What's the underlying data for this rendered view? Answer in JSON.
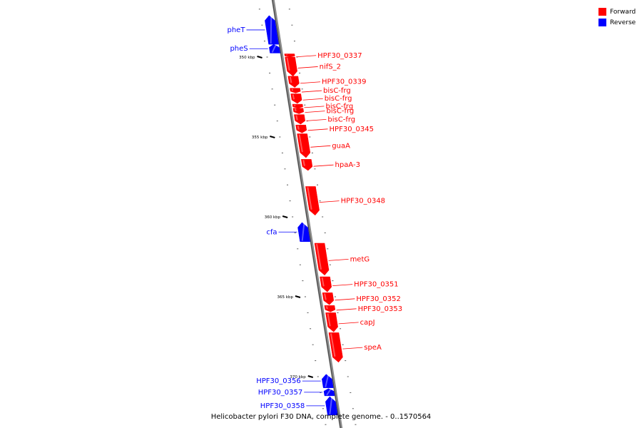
{
  "legend": {
    "forward_label": "Forward",
    "reverse_label": "Reverse",
    "forward_color": "#ff0000",
    "reverse_color": "#0000ff"
  },
  "caption": "Helicobacter pylori F30 DNA, complete genome. - 0..1570564",
  "ruler": {
    "unit": "kbp",
    "start_kbp": 350,
    "step_kbp": 5,
    "end_kbp": 370
  },
  "genes": [
    {
      "name": "pheT",
      "strand": "reverse",
      "start_kbp": 347.4,
      "end_kbp": 349.2
    },
    {
      "name": "pheS",
      "strand": "reverse",
      "start_kbp": 349.2,
      "end_kbp": 349.75
    },
    {
      "name": "HPF30_0337",
      "strand": "forward",
      "start_kbp": 349.8,
      "end_kbp": 350.0
    },
    {
      "name": "nifS_2",
      "strand": "forward",
      "start_kbp": 350.0,
      "end_kbp": 351.2
    },
    {
      "name": "HPF30_0339",
      "strand": "forward",
      "start_kbp": 351.2,
      "end_kbp": 351.9
    },
    {
      "name": "bisC-frg",
      "strand": "forward",
      "start_kbp": 351.95,
      "end_kbp": 352.25
    },
    {
      "name": "bisC-frg",
      "strand": "forward",
      "start_kbp": 352.3,
      "end_kbp": 352.9
    },
    {
      "name": "bisC-frg",
      "strand": "forward",
      "start_kbp": 352.95,
      "end_kbp": 353.2
    },
    {
      "name": "bisC-frg",
      "strand": "forward",
      "start_kbp": 353.2,
      "end_kbp": 353.55
    },
    {
      "name": "bisC-frg",
      "strand": "forward",
      "start_kbp": 353.6,
      "end_kbp": 354.2
    },
    {
      "name": "HPF30_0345",
      "strand": "forward",
      "start_kbp": 354.25,
      "end_kbp": 354.75
    },
    {
      "name": "guaA",
      "strand": "forward",
      "start_kbp": 354.8,
      "end_kbp": 356.3
    },
    {
      "name": "hpaA-3",
      "strand": "forward",
      "start_kbp": 356.4,
      "end_kbp": 357.1
    },
    {
      "name": "HPF30_0348",
      "strand": "forward",
      "start_kbp": 358.1,
      "end_kbp": 359.9
    },
    {
      "name": "cfa",
      "strand": "reverse",
      "start_kbp": 360.35,
      "end_kbp": 361.55
    },
    {
      "name": "metG",
      "strand": "forward",
      "start_kbp": 361.65,
      "end_kbp": 363.65
    },
    {
      "name": "HPF30_0351",
      "strand": "forward",
      "start_kbp": 363.75,
      "end_kbp": 364.7
    },
    {
      "name": "HPF30_0352",
      "strand": "forward",
      "start_kbp": 364.75,
      "end_kbp": 365.5
    },
    {
      "name": "HPF30_0353",
      "strand": "forward",
      "start_kbp": 365.55,
      "end_kbp": 365.95
    },
    {
      "name": "capJ",
      "strand": "forward",
      "start_kbp": 366.0,
      "end_kbp": 367.2
    },
    {
      "name": "speA",
      "strand": "forward",
      "start_kbp": 367.25,
      "end_kbp": 369.1
    },
    {
      "name": "HPF30_0356",
      "strand": "reverse",
      "start_kbp": 369.85,
      "end_kbp": 370.7
    },
    {
      "name": "HPF30_0357",
      "strand": "reverse",
      "start_kbp": 370.75,
      "end_kbp": 371.2
    },
    {
      "name": "HPF30_0358",
      "strand": "reverse",
      "start_kbp": 371.25,
      "end_kbp": 372.4
    }
  ]
}
